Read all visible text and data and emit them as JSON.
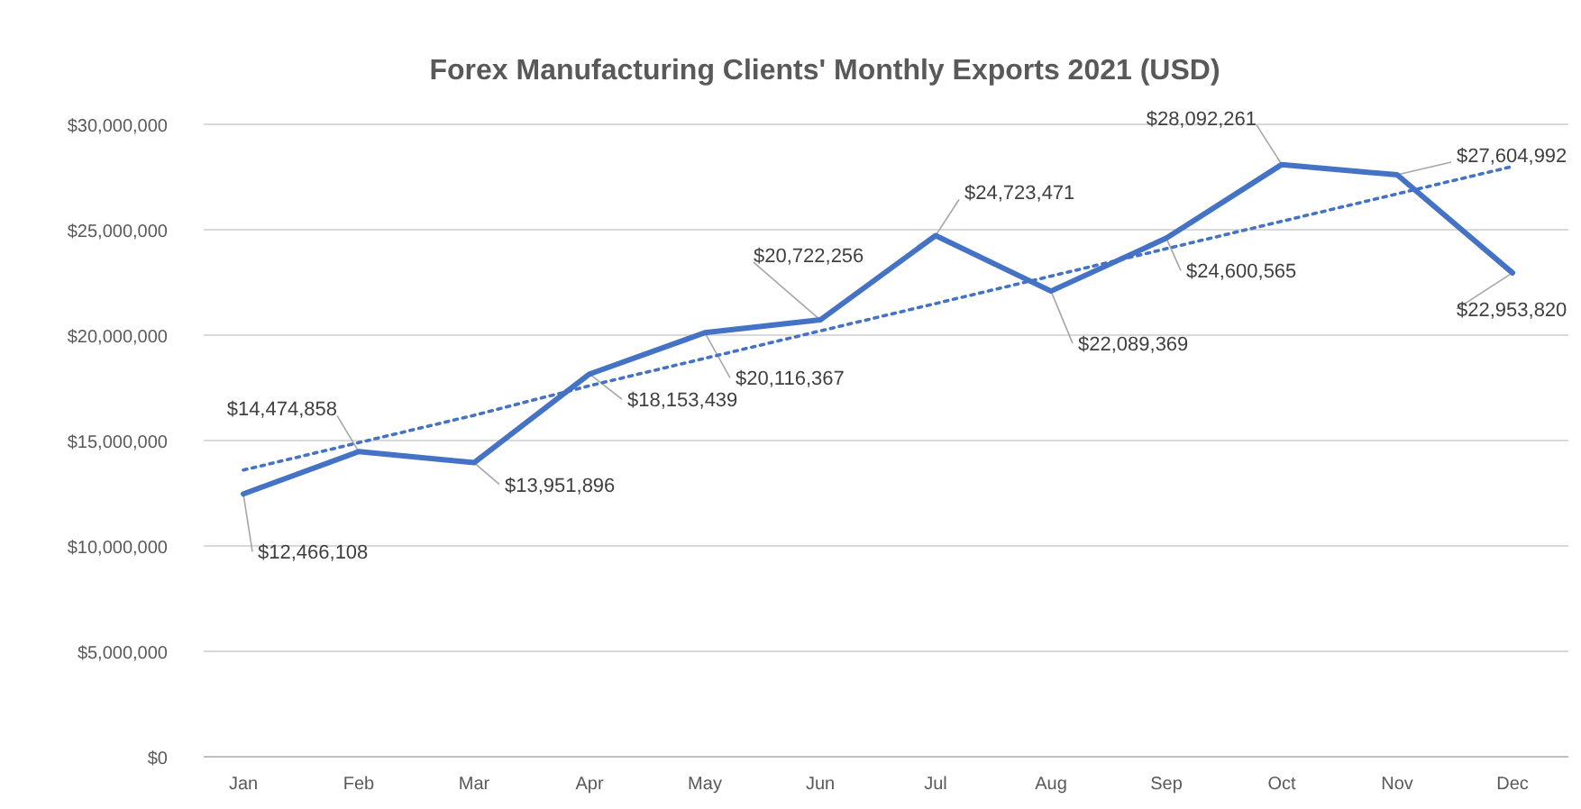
{
  "chart_data": {
    "type": "line",
    "title": "Forex Manufacturing Clients' Monthly Exports 2021 (USD)",
    "categories": [
      "Jan",
      "Feb",
      "Mar",
      "Apr",
      "May",
      "Jun",
      "Jul",
      "Aug",
      "Sep",
      "Oct",
      "Nov",
      "Dec"
    ],
    "series": [
      {
        "color": "#4472c4",
        "line_style": "solid",
        "values": [
          12466108,
          14474858,
          13951896,
          18153439,
          20116367,
          20722256,
          24723471,
          22089369,
          24600565,
          28092261,
          27604992,
          22953820
        ],
        "value_labels": [
          "$12,466,108",
          "$14,474,858",
          "$13,951,896",
          "$18,153,439",
          "$20,116,367",
          "$20,722,256",
          "$24,723,471",
          "$22,089,369",
          "$24,600,565",
          "$28,092,261",
          "$27,604,992",
          "$22,953,820"
        ]
      },
      {
        "color": "#4472c4",
        "line_style": "dotted",
        "values": [
          13600000,
          14900000,
          16200000,
          17600000,
          18900000,
          20200000,
          21500000,
          22800000,
          24100000,
          25400000,
          26700000,
          28000000
        ]
      }
    ],
    "ylim": [
      0,
      30000000
    ],
    "yticks": [
      {
        "value": 0,
        "label": "$0"
      },
      {
        "value": 5000000,
        "label": "$5,000,000"
      },
      {
        "value": 10000000,
        "label": "$10,000,000"
      },
      {
        "value": 15000000,
        "label": "$15,000,000"
      },
      {
        "value": 20000000,
        "label": "$20,000,000"
      },
      {
        "value": 25000000,
        "label": "$25,000,000"
      },
      {
        "value": 30000000,
        "label": "$30,000,000"
      }
    ],
    "grid": "y",
    "marker": "none"
  }
}
